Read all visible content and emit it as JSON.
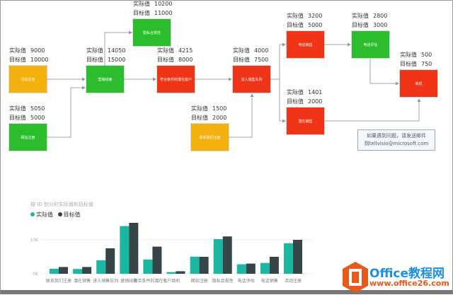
{
  "labels": {
    "actual": "实际值",
    "target": "目标值"
  },
  "colors": {
    "green": "#2cbd2c",
    "red": "#ef3418",
    "yellow": "#f4b00c",
    "actual_bar": "#1ab7a3",
    "target_bar": "#364547"
  },
  "nodes": [
    {
      "id": "n1",
      "name": "活动注册",
      "actual": "9000",
      "target": "10000",
      "status": "yellow"
    },
    {
      "id": "n2",
      "name": "网站注册",
      "actual": "5050",
      "target": "5000",
      "status": "green"
    },
    {
      "id": "n3",
      "name": "营销线索",
      "actual": "14050",
      "target": "15000",
      "status": "green"
    },
    {
      "id": "n4",
      "name": "隐私合规性",
      "actual": "10200",
      "target": "11000",
      "status": "green"
    },
    {
      "id": "n5",
      "name": "符合条件的潜在客户",
      "actual": "4215",
      "target": "8000",
      "status": "red"
    },
    {
      "id": "n6",
      "name": "联系我们注册",
      "actual": "1500",
      "target": "2000",
      "status": "yellow"
    },
    {
      "id": "n7",
      "name": "进入销售队列",
      "actual": "4000",
      "target": "7500",
      "status": "red"
    },
    {
      "id": "n8",
      "name": "电话销售",
      "actual": "3200",
      "target": "5000",
      "status": "red"
    },
    {
      "id": "n9",
      "name": "电话评估",
      "actual": "2800",
      "target": "3000",
      "status": "green"
    },
    {
      "id": "n10",
      "name": "商机",
      "actual": "500",
      "target": "750",
      "status": "red"
    },
    {
      "id": "n11",
      "name": "潜在销售",
      "actual": "1401",
      "target": "2000",
      "status": "red"
    }
  ],
  "note": {
    "line1": "如果遇到问题，请发送邮件",
    "line2": "到tellvisio@microsoft.com"
  },
  "chart_data": {
    "type": "bar",
    "title": "按 ID 划分的实际值和目标值",
    "categories": [
      "联系我们注册",
      "潜在销售",
      "进入销售队列",
      "营销线索",
      "符合条件的潜在客户",
      "商机",
      "网站注册",
      "隐私合规性",
      "电话评估",
      "电话销售",
      "活动注册"
    ],
    "series": [
      {
        "name": "实际值",
        "values": [
          1500,
          1401,
          4000,
          14050,
          4215,
          500,
          5050,
          10200,
          2800,
          3200,
          9000
        ]
      },
      {
        "name": "目标值",
        "values": [
          2000,
          2000,
          7500,
          15000,
          8000,
          750,
          5000,
          11000,
          3000,
          5000,
          10000
        ]
      }
    ],
    "yticks": [
      "0K",
      "10K"
    ],
    "ylim": [
      0,
      16000
    ],
    "legend": "top-left",
    "grid": true
  },
  "watermark": {
    "brand": "Office教程网",
    "url": "www.office26.com"
  }
}
